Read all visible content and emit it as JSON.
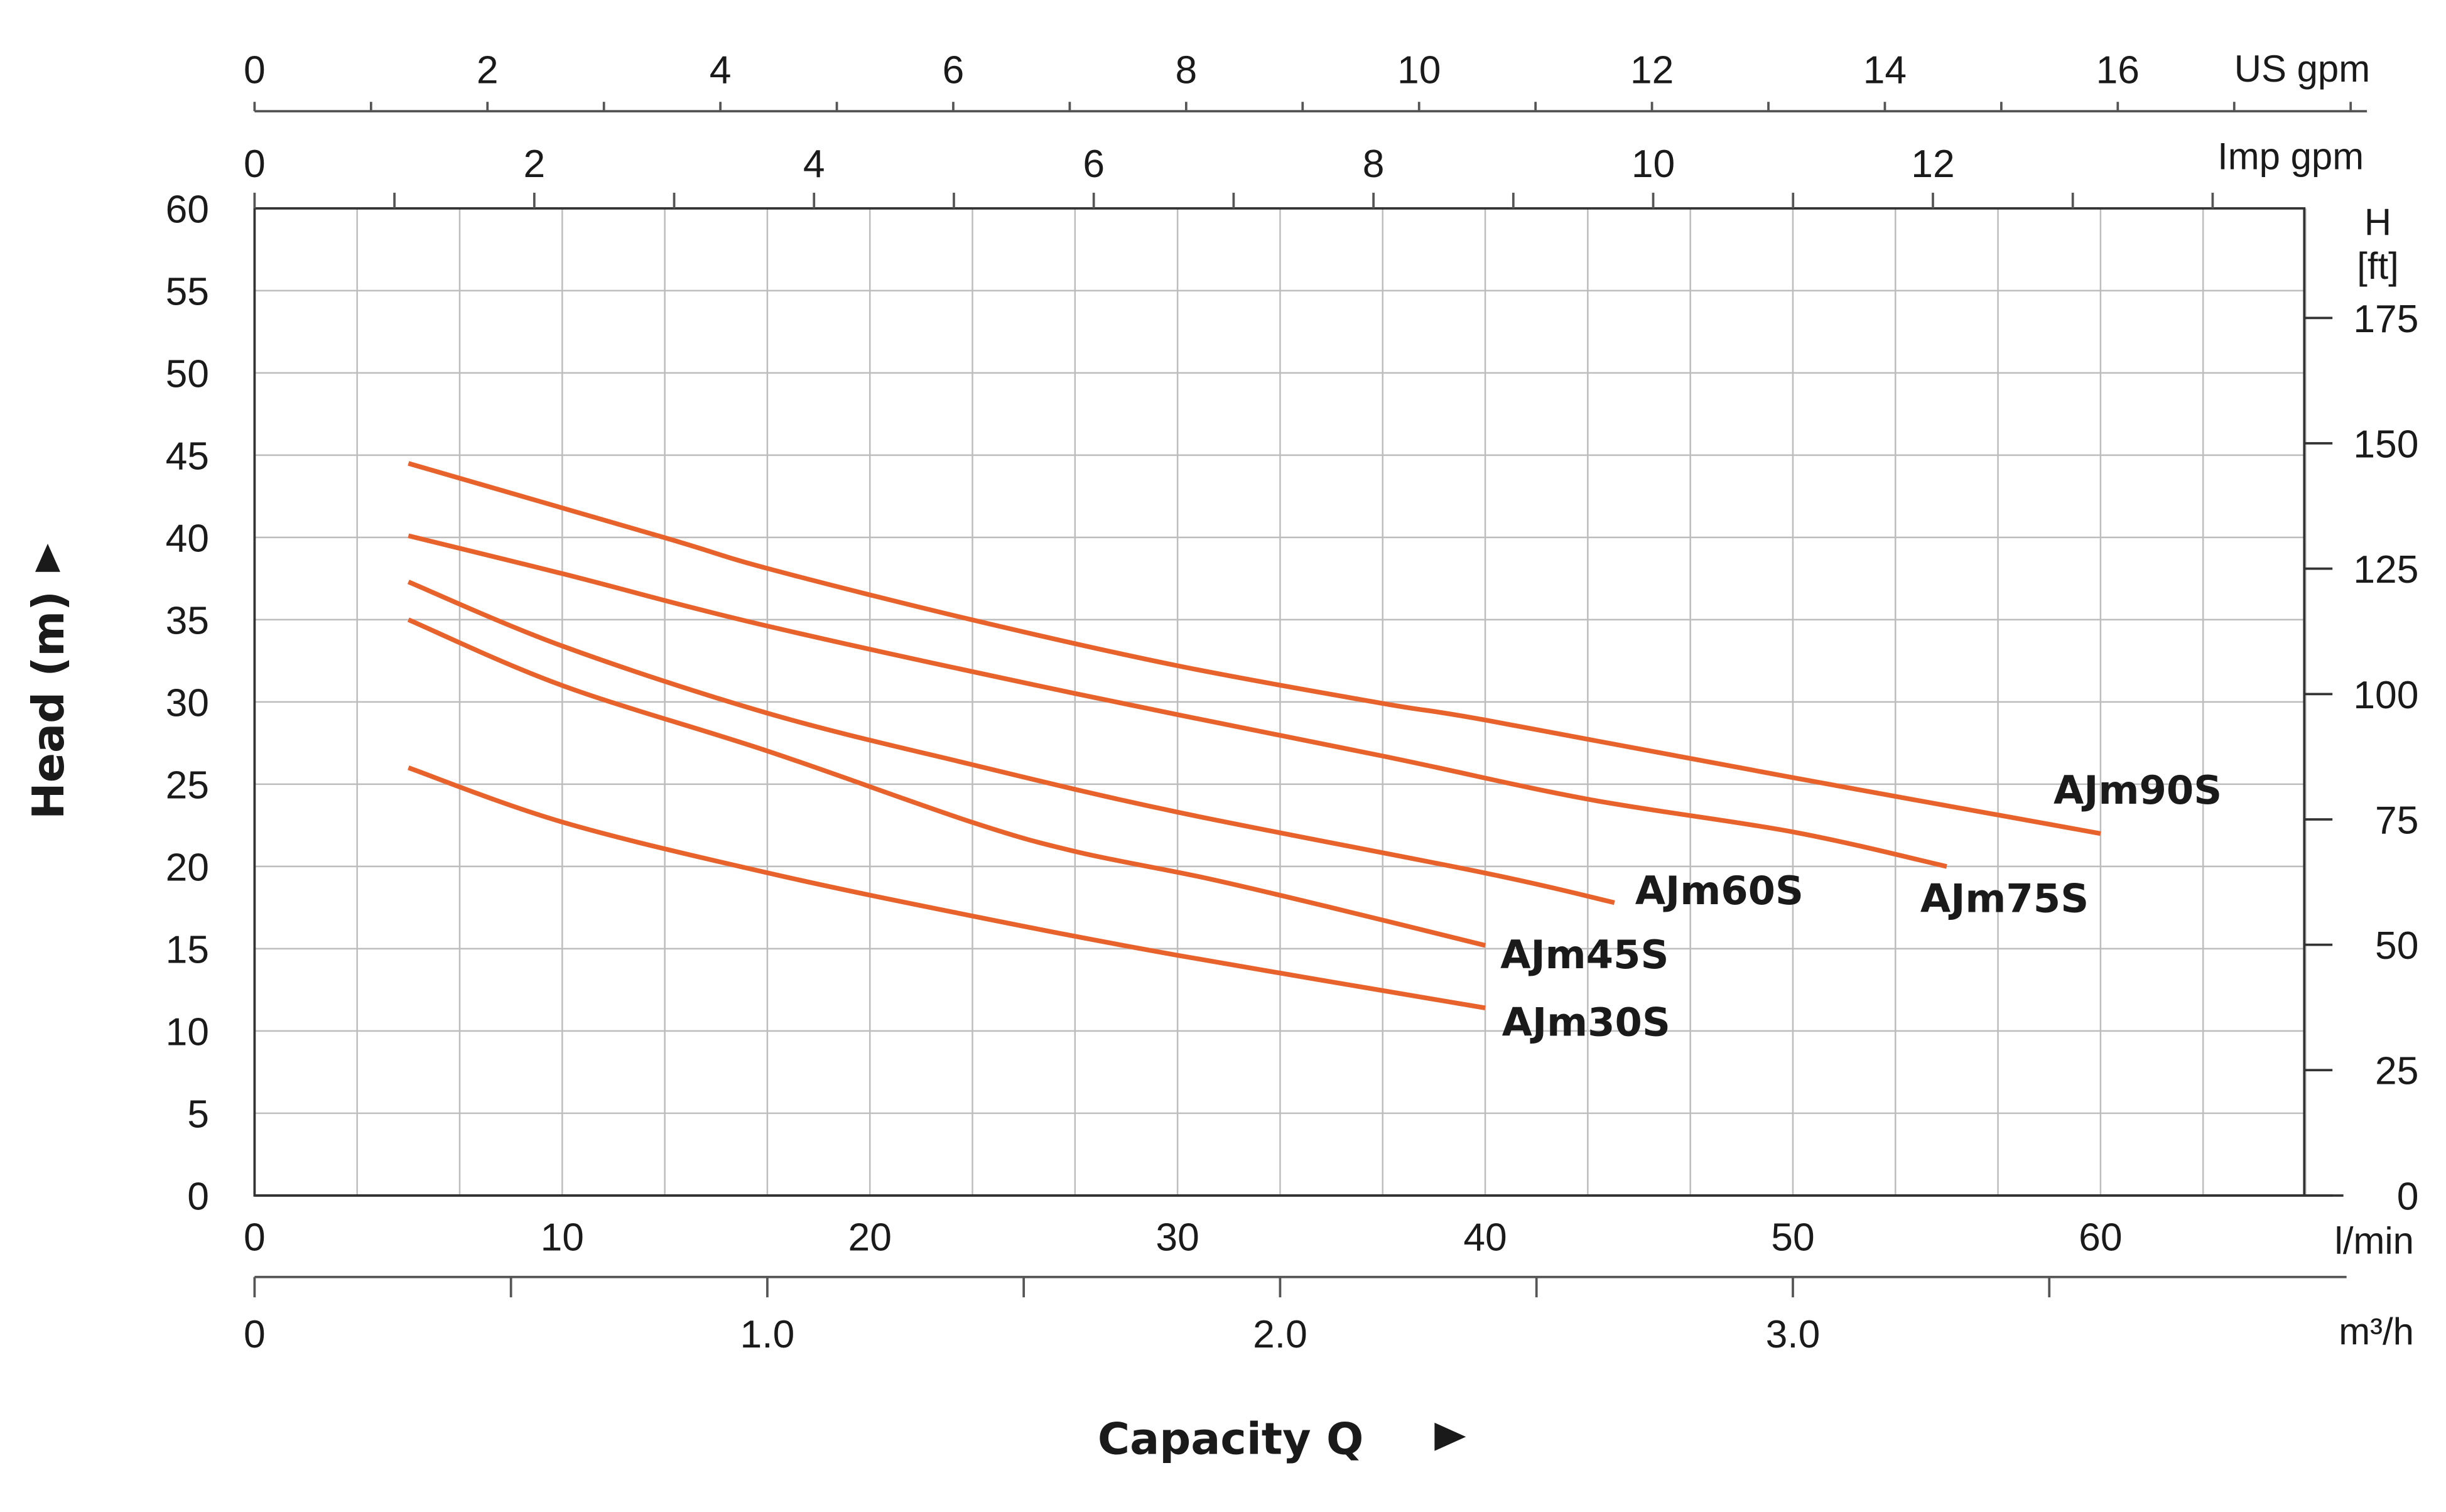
{
  "chart_data": {
    "type": "line",
    "title": "",
    "xlabel": "Capacity Q",
    "ylabel": "Head (m)",
    "x_unit": "l/min",
    "xlim": [
      0,
      66.7
    ],
    "ylim": [
      0,
      60
    ],
    "x_ticks": [
      0,
      10,
      20,
      30,
      40,
      50,
      60
    ],
    "y_ticks": [
      0,
      5,
      10,
      15,
      20,
      25,
      30,
      35,
      40,
      45,
      50,
      55,
      60
    ],
    "grid": true,
    "secondary_axes": {
      "us_gpm": {
        "unit": "US gpm",
        "ticks": [
          0,
          2,
          4,
          6,
          8,
          10,
          12,
          14,
          16
        ]
      },
      "imp_gpm": {
        "unit": "Imp gpm",
        "ticks": [
          0,
          2,
          4,
          6,
          8,
          10,
          12
        ]
      },
      "m3h": {
        "unit": "m³/h",
        "tick_labels": [
          "0",
          "1.0",
          "2.0",
          "3.0"
        ],
        "ticks": [
          0,
          1,
          2,
          3
        ]
      },
      "feet": {
        "unit_line1": "H",
        "unit_line2": "[ft]",
        "ticks": [
          0,
          25,
          50,
          75,
          100,
          125,
          150,
          175
        ]
      }
    },
    "line_color": "#e8622c",
    "series": [
      {
        "name": "AJm90S",
        "x": [
          5,
          13.3,
          16.7,
          23.3,
          30,
          36.7,
          40,
          50,
          60
        ],
        "y": [
          44.5,
          40,
          38.1,
          35,
          32.2,
          29.9,
          28.9,
          25.4,
          22
        ]
      },
      {
        "name": "AJm75S",
        "x": [
          5,
          10,
          16.7,
          26.7,
          36.7,
          43.3,
          50,
          55
        ],
        "y": [
          40.1,
          37.8,
          34.6,
          30.5,
          26.7,
          24.1,
          22.1,
          20
        ]
      },
      {
        "name": "AJm60S",
        "x": [
          5,
          10,
          16.7,
          23.3,
          30,
          40,
          44.2
        ],
        "y": [
          37.3,
          33.4,
          29.3,
          26.2,
          23.3,
          19.6,
          17.8
        ]
      },
      {
        "name": "AJm45S",
        "x": [
          5,
          10,
          16.7,
          23.3,
          26.7,
          30.9,
          35,
          40
        ],
        "y": [
          35,
          31,
          27,
          22.7,
          20.9,
          19.3,
          17.5,
          15.2
        ]
      },
      {
        "name": "AJm30S",
        "x": [
          5,
          10,
          16.7,
          23.3,
          30,
          40
        ],
        "y": [
          26,
          22.7,
          19.6,
          17,
          14.6,
          11.4
        ]
      }
    ]
  }
}
